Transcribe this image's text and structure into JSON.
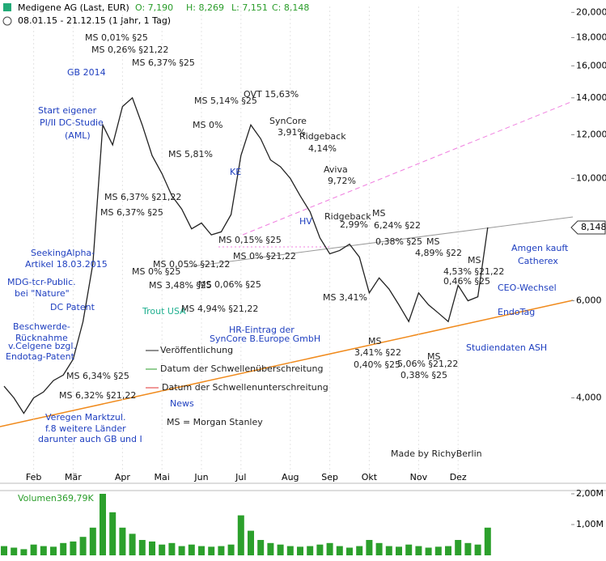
{
  "header": {
    "title": "Medigene AG (Last, EUR)",
    "open": "O: 7,190",
    "high": "H: 8,269",
    "low": "L: 7,151",
    "close": "C: 8,148",
    "period": "08.01.15 - 21.12.15 (1 Jahr, 1 Tag)"
  },
  "chart_data": [
    {
      "type": "line",
      "log_scale": true,
      "color": "#222222",
      "categories": [
        null,
        null,
        null,
        "Feb",
        null,
        null,
        null,
        "Mär",
        null,
        null,
        null,
        null,
        "Apr",
        null,
        null,
        null,
        "Mai",
        null,
        null,
        null,
        "Jun",
        null,
        null,
        null,
        "Jul",
        null,
        null,
        null,
        null,
        "Aug",
        null,
        null,
        null,
        "Sep",
        null,
        null,
        null,
        "Okt",
        null,
        null,
        null,
        null,
        "Nov",
        null,
        null,
        null,
        "Dez",
        null,
        null,
        null
      ],
      "values": [
        4200,
        4000,
        3750,
        4000,
        4100,
        4300,
        4400,
        4700,
        5500,
        7000,
        12500,
        11500,
        13500,
        14000,
        12500,
        11000,
        10200,
        9300,
        8800,
        8100,
        8300,
        7900,
        8000,
        8600,
        11000,
        12500,
        11800,
        10800,
        10500,
        10000,
        9300,
        8700,
        7800,
        7300,
        7400,
        7600,
        7200,
        6200,
        6600,
        6300,
        5900,
        5500,
        6200,
        5900,
        5700,
        5500,
        6400,
        6000,
        6100,
        8148
      ],
      "last_label": "8,148",
      "ylim": [
        2800,
        20500
      ],
      "yticks": [
        {
          "value": 4000,
          "label": "4,000"
        },
        {
          "value": 6000,
          "label": "6,000"
        },
        {
          "value": 10000,
          "label": "10,000"
        },
        {
          "value": 12000,
          "label": "12,000"
        },
        {
          "value": 14000,
          "label": "14,000"
        },
        {
          "value": 16000,
          "label": "16,000"
        },
        {
          "value": 18000,
          "label": "18,000"
        },
        {
          "value": 20000,
          "label": "20,000"
        }
      ],
      "annotations": [
        {
          "text": "MS 0,01% §25",
          "color": "#222222"
        },
        {
          "text": "MS 0,26% §21,22",
          "color": "#222222"
        },
        {
          "text": "MS 6,37% §25",
          "color": "#222222"
        },
        {
          "text": "GB 2014",
          "color": "#2040c0"
        },
        {
          "text": "Start eigener",
          "color": "#2040c0"
        },
        {
          "text": "PI/II DC-Studie",
          "color": "#2040c0"
        },
        {
          "text": "(AML)",
          "color": "#2040c0"
        },
        {
          "text": "MS 5,14% §25",
          "color": "#222222"
        },
        {
          "text": "OVT 15,63%",
          "color": "#222222"
        },
        {
          "text": "SynCore",
          "color": "#222222"
        },
        {
          "text": "3,91%",
          "color": "#222222"
        },
        {
          "text": "MS 0%",
          "color": "#222222"
        },
        {
          "text": "Ridgeback",
          "color": "#222222"
        },
        {
          "text": "4,14%",
          "color": "#222222"
        },
        {
          "text": "MS 5,81%",
          "color": "#222222"
        },
        {
          "text": "Aviva",
          "color": "#222222"
        },
        {
          "text": "9,72%",
          "color": "#222222"
        },
        {
          "text": "KE",
          "color": "#2040c0"
        },
        {
          "text": "MS 6,37% §21,22",
          "color": "#222222"
        },
        {
          "text": "MS 6,37% §25",
          "color": "#222222"
        },
        {
          "text": "HV",
          "color": "#2040c0"
        },
        {
          "text": "Ridgeback",
          "color": "#222222"
        },
        {
          "text": "2,99%",
          "color": "#222222"
        },
        {
          "text": "MS",
          "color": "#222222"
        },
        {
          "text": "6,24% §22",
          "color": "#222222"
        },
        {
          "text": "MS 0,15% §25",
          "color": "#222222"
        },
        {
          "text": "0,38% §25",
          "color": "#222222"
        },
        {
          "text": "MS",
          "color": "#222222"
        },
        {
          "text": "4,89% §22",
          "color": "#222222"
        },
        {
          "text": "SeekingAlpha-",
          "color": "#2040c0"
        },
        {
          "text": "Artikel 18.03.2015",
          "color": "#2040c0"
        },
        {
          "text": "MS 0% §25",
          "color": "#222222"
        },
        {
          "text": "MS 0,05% §21,22",
          "color": "#222222"
        },
        {
          "text": "MS 0% §21,22",
          "color": "#222222"
        },
        {
          "text": "4,53% §21,22",
          "color": "#222222"
        },
        {
          "text": "0,46% §25",
          "color": "#222222"
        },
        {
          "text": "MS",
          "color": "#222222"
        },
        {
          "text": "MDG-tcr-Public.",
          "color": "#2040c0"
        },
        {
          "text": "bei \"Nature\"",
          "color": "#2040c0"
        },
        {
          "text": "MS 3,48% §25",
          "color": "#222222"
        },
        {
          "text": "MS 0,06% §25",
          "color": "#222222"
        },
        {
          "text": "MS 3,41%",
          "color": "#222222"
        },
        {
          "text": "DC Patent",
          "color": "#2040c0"
        },
        {
          "text": "Trout USA",
          "color": "#20b090"
        },
        {
          "text": "MS 4,94% §21,22",
          "color": "#222222"
        },
        {
          "text": "Beschwerde-",
          "color": "#2040c0"
        },
        {
          "text": "Rücknahme",
          "color": "#2040c0"
        },
        {
          "text": "v.Celgene bzgl.",
          "color": "#2040c0"
        },
        {
          "text": "Endotag-Patent",
          "color": "#2040c0"
        },
        {
          "text": "HR-Eintrag der",
          "color": "#2040c0"
        },
        {
          "text": "SynCore B.Europe GmbH",
          "color": "#2040c0"
        },
        {
          "text": "MS",
          "color": "#222222"
        },
        {
          "text": "3,41% §22",
          "color": "#222222"
        },
        {
          "text": "0,40% §25",
          "color": "#222222"
        },
        {
          "text": "MS",
          "color": "#222222"
        },
        {
          "text": "5,06% §21,22",
          "color": "#222222"
        },
        {
          "text": "0,38% §25",
          "color": "#222222"
        },
        {
          "text": "Amgen kauft",
          "color": "#2040c0"
        },
        {
          "text": "Catherex",
          "color": "#2040c0"
        },
        {
          "text": "CEO-Wechsel",
          "color": "#2040c0"
        },
        {
          "text": "EndoTag",
          "color": "#2040c0"
        },
        {
          "text": "Studiendaten ASH",
          "color": "#2040c0"
        },
        {
          "text": "MS 6,34% §25",
          "color": "#222222"
        },
        {
          "text": "MS 6,32% §21,22",
          "color": "#222222"
        },
        {
          "text": "Veregen Marktzul.",
          "color": "#2040c0"
        },
        {
          "text": "f.8 weitere Länder",
          "color": "#2040c0"
        },
        {
          "text": "darunter auch GB und I",
          "color": "#2040c0"
        },
        {
          "text": "Veröffentlichung",
          "color": "#222222"
        },
        {
          "text": "Datum der Schwellenüberschreitung",
          "color": "#222222"
        },
        {
          "text": "Datum der Schwellenunterschreitung",
          "color": "#222222"
        },
        {
          "text": "News",
          "color": "#2040c0"
        },
        {
          "text": "MS = Morgan Stanley",
          "color": "#222222"
        },
        {
          "text": "Made by RichyBerlin",
          "color": "#222222"
        }
      ]
    },
    {
      "type": "bar",
      "title": "Volumen",
      "subtitle": "369,79K",
      "color": "#2ca02c",
      "values": [
        300000,
        250000,
        200000,
        350000,
        300000,
        280000,
        400000,
        450000,
        600000,
        900000,
        2000000,
        1400000,
        900000,
        700000,
        500000,
        450000,
        350000,
        400000,
        300000,
        350000,
        300000,
        280000,
        300000,
        350000,
        1300000,
        800000,
        500000,
        400000,
        350000,
        300000,
        280000,
        300000,
        350000,
        400000,
        300000,
        250000,
        300000,
        500000,
        400000,
        300000,
        280000,
        350000,
        300000,
        250000,
        280000,
        300000,
        500000,
        400000,
        350000,
        900000
      ],
      "ylim": [
        0,
        2000000
      ],
      "yticks": [
        {
          "value": 1000000,
          "label": "1,00M"
        },
        {
          "value": 2000000,
          "label": "2,00M"
        }
      ]
    }
  ]
}
